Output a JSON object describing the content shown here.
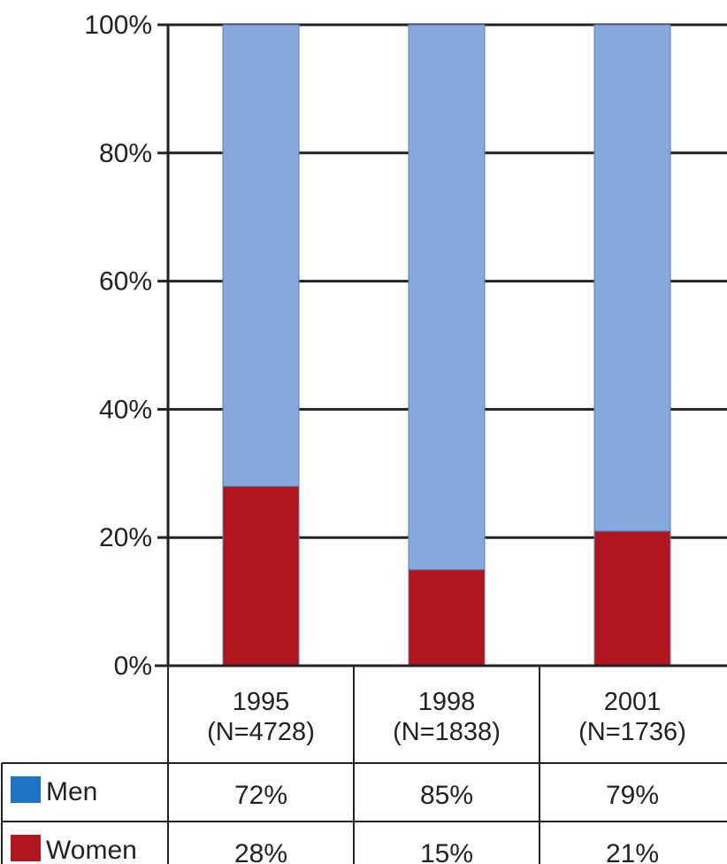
{
  "chart_data": {
    "type": "bar",
    "stacked": true,
    "categories": [
      "1995",
      "1998",
      "2001"
    ],
    "category_notes": [
      "(N=4728)",
      "(N=1838)",
      "(N=1736)"
    ],
    "ylim": [
      0,
      100
    ],
    "yticks": [
      0,
      20,
      40,
      60,
      80,
      100
    ],
    "ytick_labels": [
      "0%",
      "20%",
      "40%",
      "60%",
      "80%",
      "100%"
    ],
    "grid": true,
    "legend_placement": "bottom-left data table",
    "series": [
      {
        "name": "Women",
        "values": [
          28,
          15,
          21
        ],
        "labels": [
          "28%",
          "15%",
          "21%"
        ],
        "color": "#b0161d"
      },
      {
        "name": "Men",
        "values": [
          72,
          85,
          79
        ],
        "labels": [
          "72%",
          "85%",
          "79%"
        ],
        "color": "#86a8dc"
      }
    ],
    "legend_swatches": {
      "Men": "#1f73c7",
      "Women": "#b0161d"
    }
  }
}
